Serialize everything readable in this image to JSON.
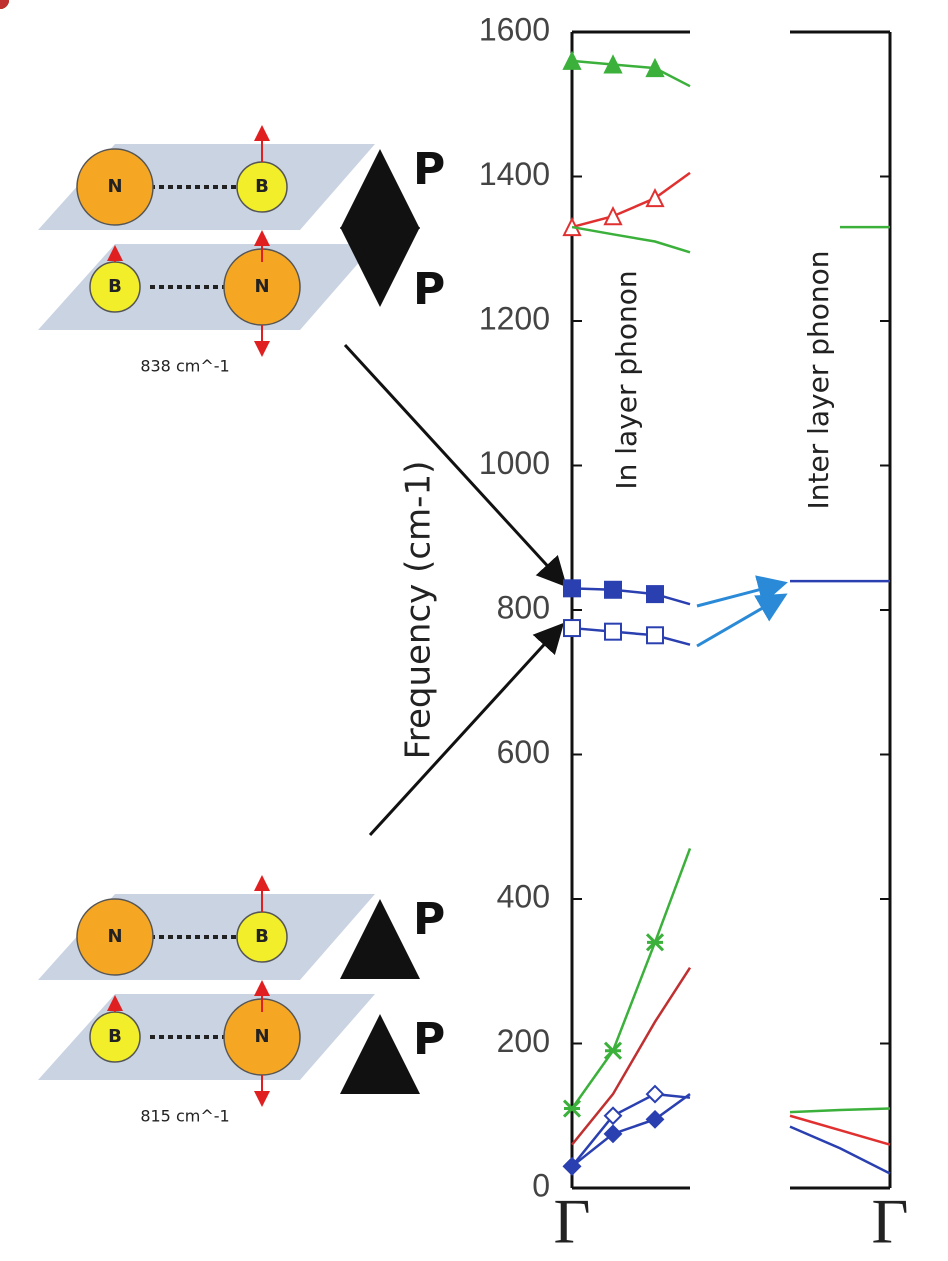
{
  "chart_data": [
    {
      "type": "line",
      "ylabel": "Frequency (cm-1)",
      "annotation": "In layer phonon",
      "categories": [
        "Γ",
        null,
        null,
        null
      ],
      "ylim": [
        0,
        1600
      ],
      "yticks": [
        0,
        200,
        400,
        600,
        800,
        1000,
        1200,
        1400,
        1600
      ],
      "series": [
        {
          "color": "#3bb03b",
          "marker": "triangle-filled",
          "values": [
            1560,
            1555,
            1550,
            1525
          ]
        },
        {
          "color": "#e03030",
          "marker": "triangle-open",
          "values": [
            1330,
            1345,
            1370,
            1405
          ]
        },
        {
          "color": "#3bb03b",
          "marker": "circle-filled",
          "values": [
            1330,
            1320,
            1310,
            1295
          ]
        },
        {
          "color": "#2a3fb0",
          "marker": "square-filled",
          "values": [
            830,
            828,
            822,
            808
          ]
        },
        {
          "color": "#2a3fb0",
          "marker": "square-open",
          "values": [
            775,
            770,
            765,
            752
          ]
        },
        {
          "color": "#3bb03b",
          "marker": "star",
          "values": [
            110,
            190,
            340,
            470
          ]
        },
        {
          "color": "#c03030",
          "marker": "circle-filled",
          "values": [
            60,
            130,
            230,
            305
          ]
        },
        {
          "color": "#2a3fb0",
          "marker": "diamond-open",
          "values": [
            30,
            100,
            130,
            125
          ]
        },
        {
          "color": "#2a3fb0",
          "marker": "diamond-filled",
          "values": [
            30,
            75,
            95,
            130
          ]
        }
      ]
    },
    {
      "type": "line",
      "annotation": "Inter layer phonon",
      "categories": [
        null,
        null,
        "Γ"
      ],
      "ylim": [
        0,
        1600
      ],
      "series": [
        {
          "color": "#3bb03b",
          "values": [
            null,
            1330,
            1330
          ]
        },
        {
          "color": "#2a3fb0",
          "values": [
            840,
            840,
            840
          ]
        },
        {
          "color": "#3bb03b",
          "values": [
            105,
            108,
            110
          ]
        },
        {
          "color": "#e03030",
          "values": [
            100,
            80,
            60
          ]
        },
        {
          "color": "#2a3fb0",
          "values": [
            85,
            55,
            20
          ]
        }
      ]
    }
  ],
  "diagrams": [
    {
      "top": {
        "left": "N",
        "right": "B",
        "polarization": "P"
      },
      "bottom": {
        "left": "B",
        "right": "N",
        "polarization": "P"
      },
      "caption": "838 cm^-1"
    },
    {
      "top": {
        "left": "N",
        "right": "B",
        "polarization": "P"
      },
      "bottom": {
        "left": "B",
        "right": "N",
        "polarization": "P"
      },
      "caption": "815 cm^-1"
    }
  ]
}
